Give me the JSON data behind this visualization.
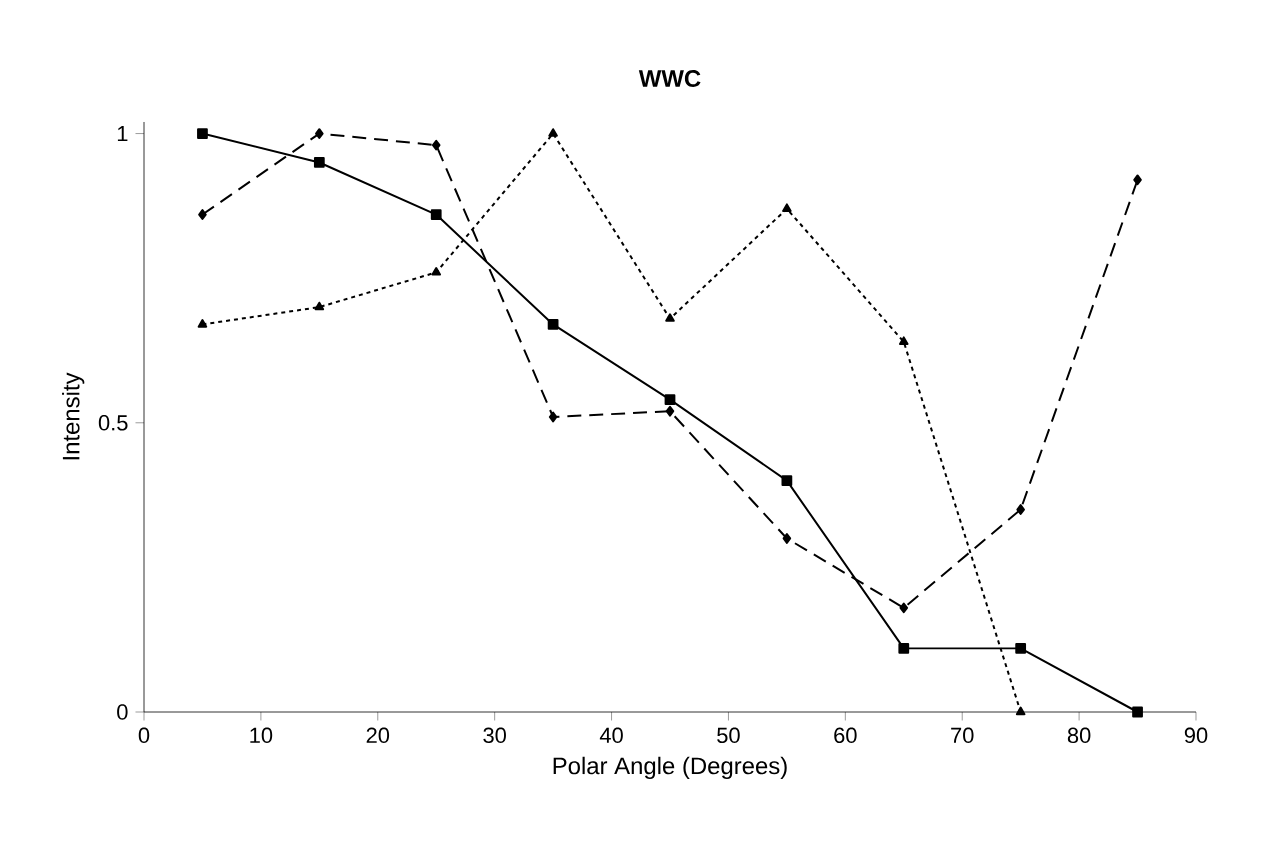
{
  "chart_data": {
    "type": "line",
    "title": "WWC",
    "xlabel": "Polar Angle (Degrees)",
    "ylabel": "Intensity",
    "x": [
      5,
      15,
      25,
      35,
      45,
      55,
      65,
      75,
      85
    ],
    "series": [
      {
        "color": "#000000",
        "marker": "square",
        "line_style": "solid",
        "values": [
          1.0,
          0.95,
          0.86,
          0.67,
          0.54,
          0.4,
          0.11,
          0.11,
          0.0
        ]
      },
      {
        "color": "#000000",
        "marker": "diamond",
        "line_style": "dashed",
        "values": [
          0.86,
          1.0,
          0.98,
          0.51,
          0.52,
          0.3,
          0.18,
          0.35,
          0.92
        ]
      },
      {
        "color": "#000000",
        "marker": "triangle",
        "line_style": "dotted",
        "values": [
          0.67,
          0.7,
          0.76,
          1.0,
          0.68,
          0.87,
          0.64,
          0.0,
          null
        ]
      }
    ],
    "xlim": [
      0,
      90
    ],
    "xticks": [
      0,
      10,
      20,
      30,
      40,
      50,
      60,
      70,
      80,
      90
    ],
    "ylim": [
      0,
      1.02
    ],
    "yticks": [
      0,
      {
        "value": 0.5,
        "label": "0.5"
      },
      1
    ],
    "grid": false
  }
}
